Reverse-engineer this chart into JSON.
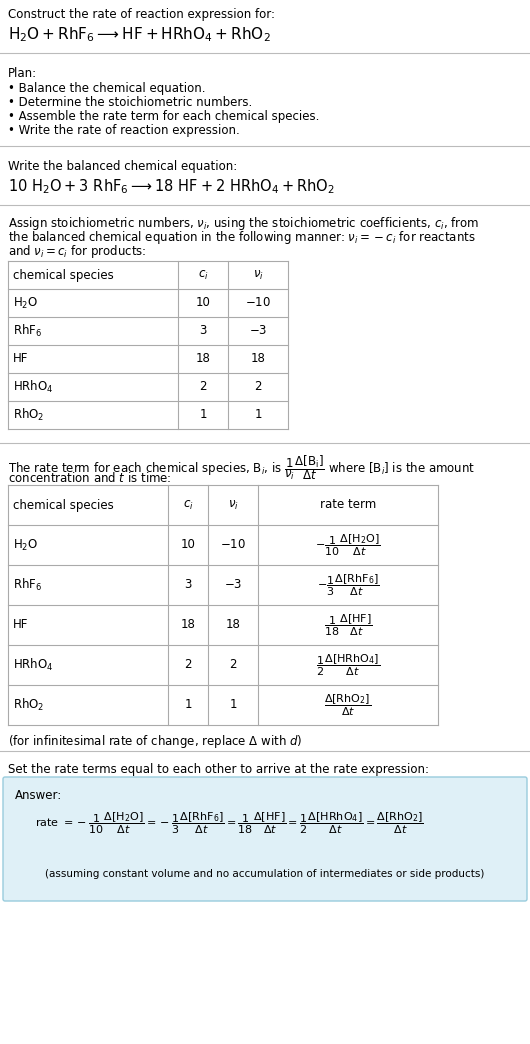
{
  "bg_color": "#ffffff",
  "text_color": "#000000",
  "table_border_color": "#aaaaaa",
  "separator_color": "#bbbbbb",
  "answer_box_color": "#dff0f7",
  "answer_box_border": "#99ccdd",
  "font_size": 8.5,
  "small_font_size": 7.5,
  "eq_font_size": 10.0,
  "section1": {
    "line1": "Construct the rate of reaction expression for:",
    "eq": "$\\mathrm{H_2O + RhF_6 \\longrightarrow HF + HRhO_4 + RhO_2}$"
  },
  "section2": {
    "header": "Plan:",
    "items": [
      "• Balance the chemical equation.",
      "• Determine the stoichiometric numbers.",
      "• Assemble the rate term for each chemical species.",
      "• Write the rate of reaction expression."
    ]
  },
  "section3": {
    "header": "Write the balanced chemical equation:",
    "eq": "$\\mathrm{10\\ H_2O + 3\\ RhF_6 \\longrightarrow 18\\ HF + 2\\ HRhO_4 + RhO_2}$"
  },
  "section4": {
    "intro": [
      "Assign stoichiometric numbers, $\\nu_i$, using the stoichiometric coefficients, $c_i$, from",
      "the balanced chemical equation in the following manner: $\\nu_i = -c_i$ for reactants",
      "and $\\nu_i = c_i$ for products:"
    ],
    "table_headers": [
      "chemical species",
      "$c_i$",
      "$\\nu_i$"
    ],
    "table_rows": [
      [
        "$\\mathrm{H_2O}$",
        "10",
        "$-$10"
      ],
      [
        "$\\mathrm{RhF_6}$",
        "3",
        "$-$3"
      ],
      [
        "HF",
        "18",
        "18"
      ],
      [
        "$\\mathrm{HRhO_4}$",
        "2",
        "2"
      ],
      [
        "$\\mathrm{RhO_2}$",
        "1",
        "1"
      ]
    ]
  },
  "section5": {
    "intro": [
      "The rate term for each chemical species, B$_i$, is $\\dfrac{1}{\\nu_i}\\dfrac{\\Delta[\\mathrm{B_i}]}{\\Delta t}$ where [B$_i$] is the amount",
      "concentration and $t$ is time:"
    ],
    "table_headers": [
      "chemical species",
      "$c_i$",
      "$\\nu_i$",
      "rate term"
    ],
    "table_rows": [
      [
        "$\\mathrm{H_2O}$",
        "10",
        "$-$10",
        "$-\\dfrac{1}{10}\\dfrac{\\Delta[\\mathrm{H_2O}]}{\\Delta t}$"
      ],
      [
        "$\\mathrm{RhF_6}$",
        "3",
        "$-$3",
        "$-\\dfrac{1}{3}\\dfrac{\\Delta[\\mathrm{RhF_6}]}{\\Delta t}$"
      ],
      [
        "HF",
        "18",
        "18",
        "$\\dfrac{1}{18}\\dfrac{\\Delta[\\mathrm{HF}]}{\\Delta t}$"
      ],
      [
        "$\\mathrm{HRhO_4}$",
        "2",
        "2",
        "$\\dfrac{1}{2}\\dfrac{\\Delta[\\mathrm{HRhO_4}]}{\\Delta t}$"
      ],
      [
        "$\\mathrm{RhO_2}$",
        "1",
        "1",
        "$\\dfrac{\\Delta[\\mathrm{RhO_2}]}{\\Delta t}$"
      ]
    ],
    "note": "(for infinitesimal rate of change, replace $\\Delta$ with $d$)"
  },
  "section6": {
    "intro": "Set the rate terms equal to each other to arrive at the rate expression:",
    "answer_label": "Answer:",
    "rate_expr": "rate $= -\\dfrac{1}{10}\\dfrac{\\Delta[\\mathrm{H_2O}]}{\\Delta t} = -\\dfrac{1}{3}\\dfrac{\\Delta[\\mathrm{RhF_6}]}{\\Delta t} = \\dfrac{1}{18}\\dfrac{\\Delta[\\mathrm{HF}]}{\\Delta t} = \\dfrac{1}{2}\\dfrac{\\Delta[\\mathrm{HRhO_4}]}{\\Delta t} = \\dfrac{\\Delta[\\mathrm{RhO_2}]}{\\Delta t}$",
    "note": "(assuming constant volume and no accumulation of intermediates or side products)"
  }
}
